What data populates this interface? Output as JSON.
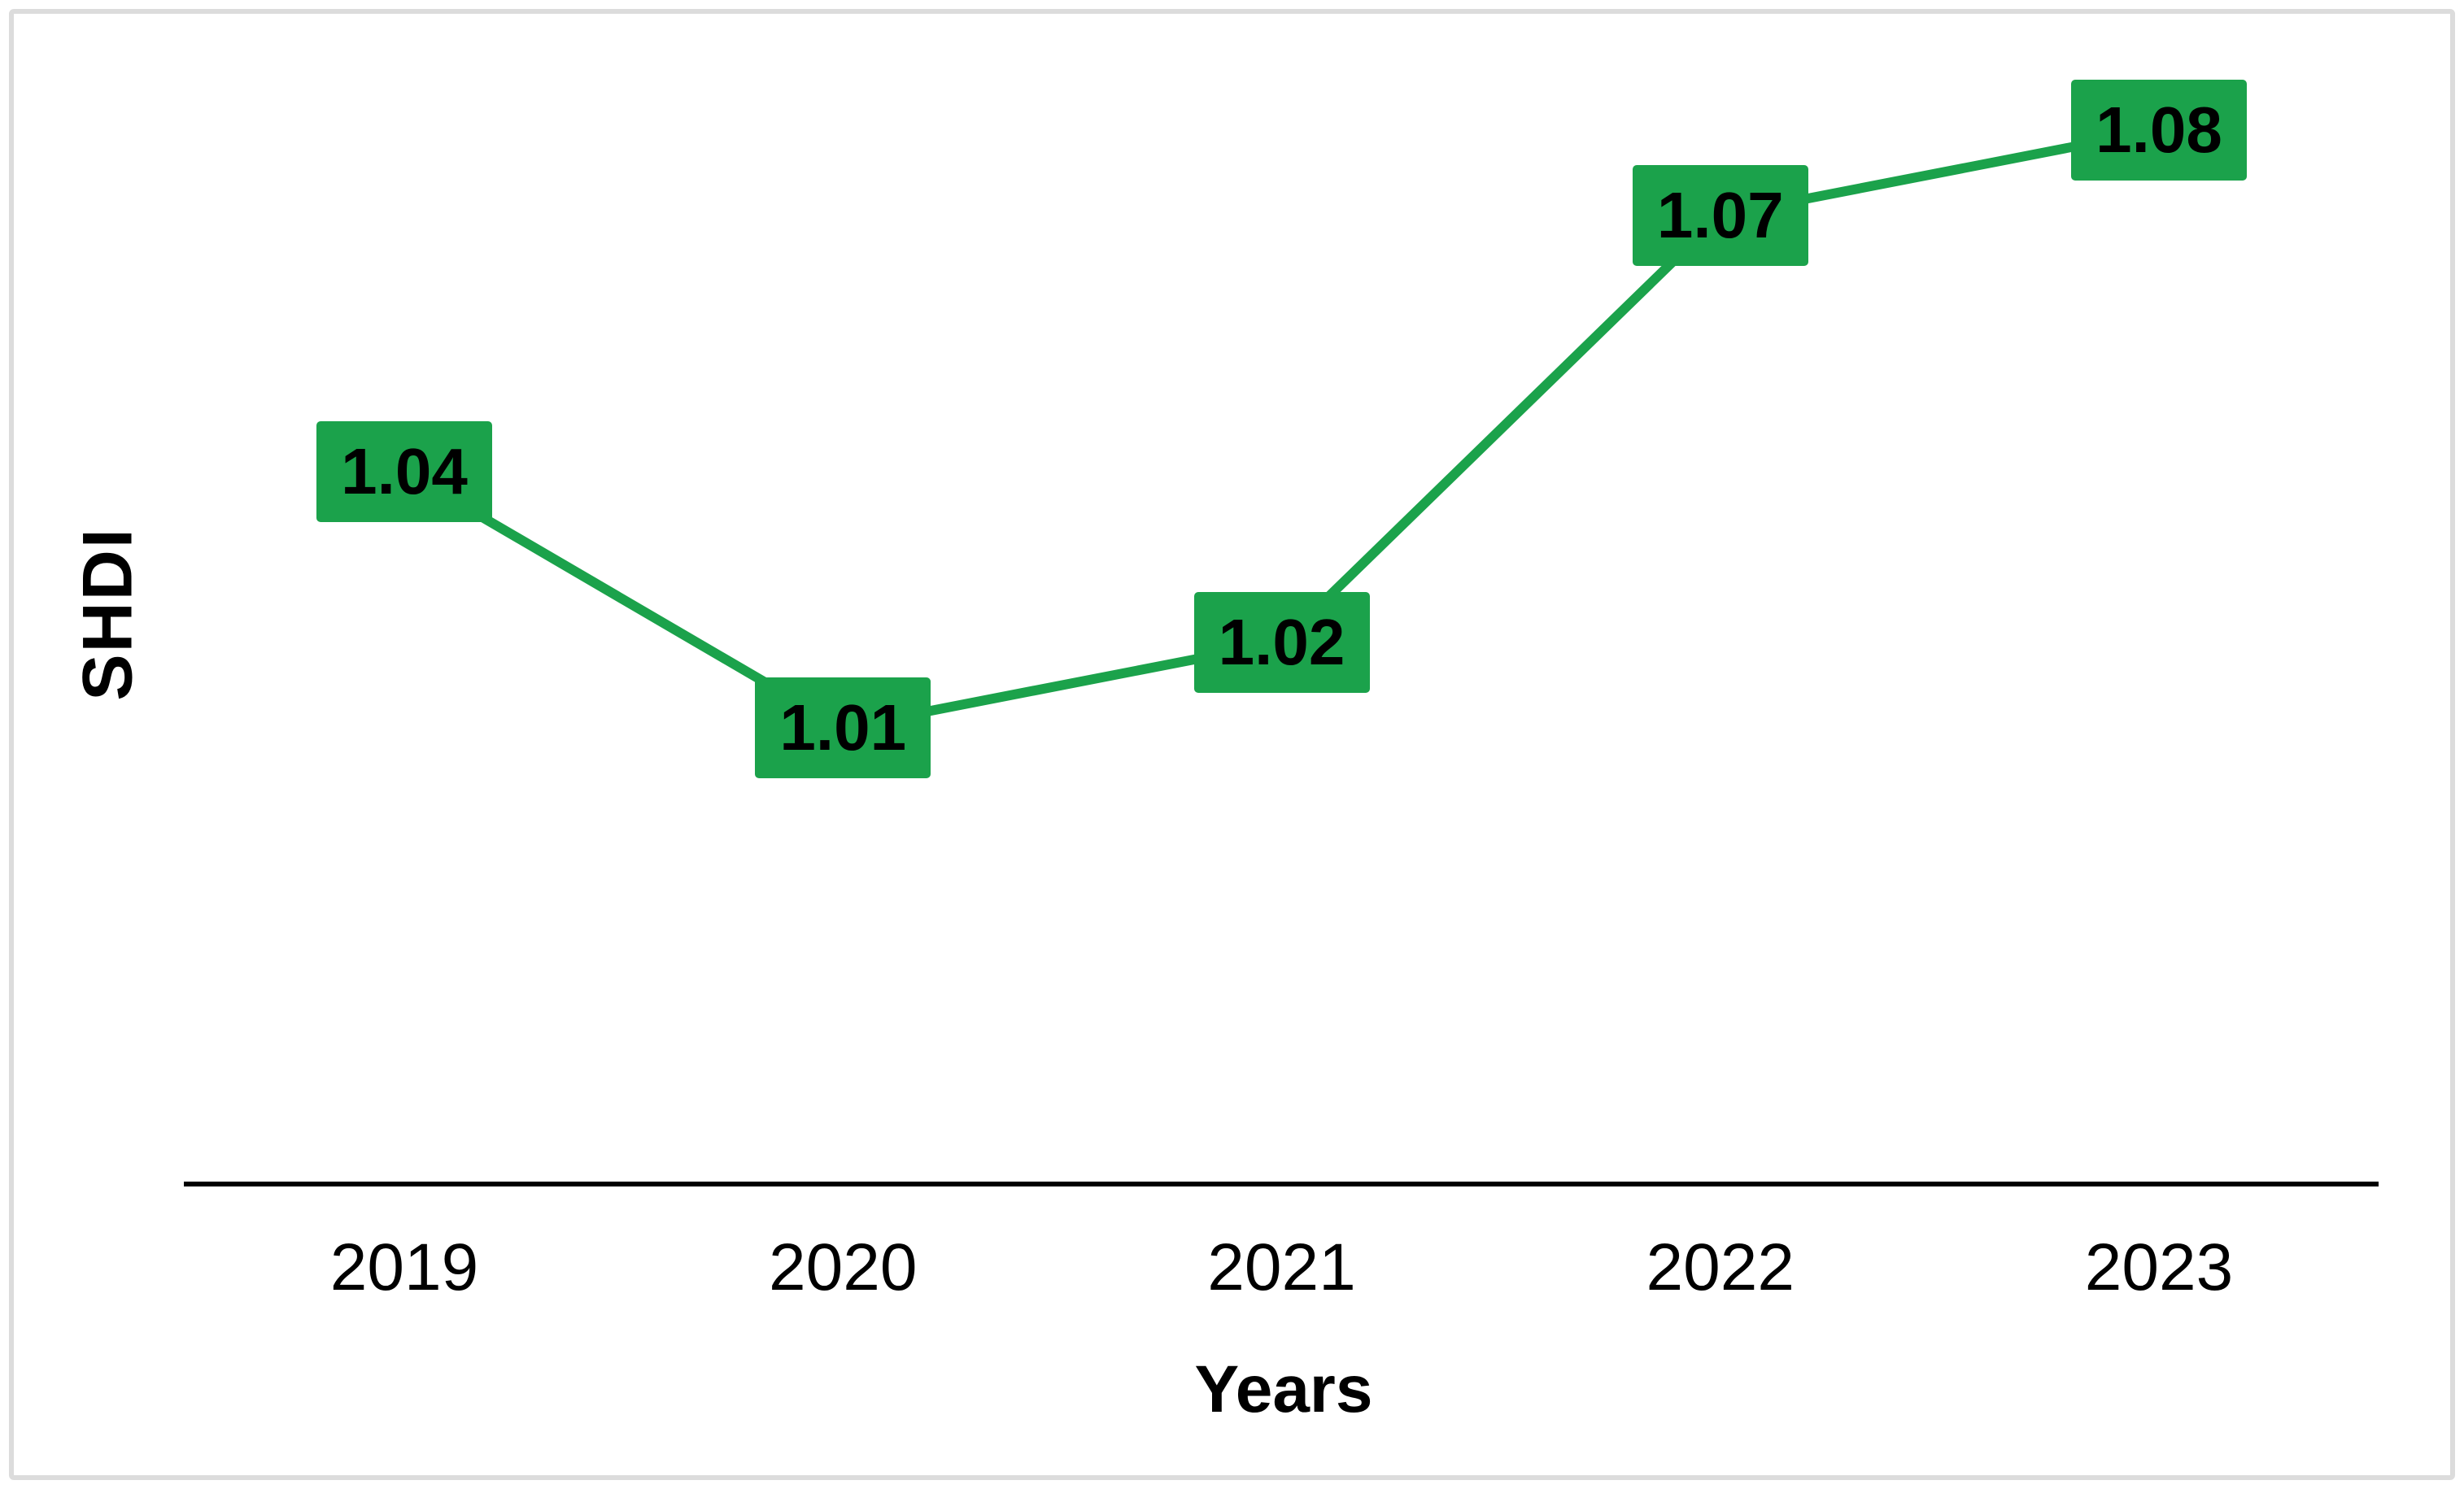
{
  "frame": {
    "border_color": "#dcdcdc",
    "background_color": "#ffffff"
  },
  "chart_data": {
    "type": "line",
    "title": "",
    "xlabel": "Years",
    "ylabel": "SHDI",
    "categories": [
      "2019",
      "2020",
      "2021",
      "2022",
      "2023"
    ],
    "series": [
      {
        "name": "SHDI",
        "values": [
          1.04,
          1.01,
          1.02,
          1.07,
          1.08
        ]
      }
    ],
    "data_label_decimals": 2,
    "line_color": "#1ba24b",
    "label_box_color": "#1ba24b",
    "label_text_color": "#000000",
    "axis_line_color": "#000000",
    "tick_text_color": "#000000",
    "grid": "off",
    "legend": "none",
    "markers": "none",
    "axis_range_hint": {
      "x": [
        "2019",
        "2023"
      ],
      "y_implied": [
        1.0,
        1.09
      ]
    }
  }
}
